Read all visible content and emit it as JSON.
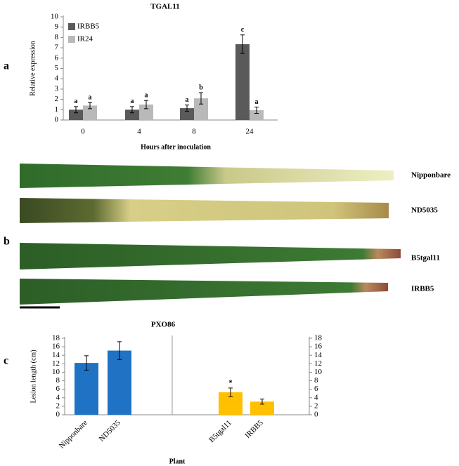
{
  "panel_labels": [
    "a",
    "b",
    "c"
  ],
  "leaf_labels": [
    "Nipponbare",
    "ND5035",
    "B5tgal11",
    "IRBB5"
  ],
  "chart_data": [
    {
      "type": "bar",
      "title": "TGAL11",
      "x_label": "Hours after inoculation",
      "y_label": "Relative expression",
      "categories": [
        "0",
        "4",
        "8",
        "24"
      ],
      "series": [
        {
          "name": "IRBB5",
          "color": "#5a5a5a",
          "values": [
            1.0,
            1.0,
            1.15,
            7.35
          ],
          "errors": [
            0.3,
            0.3,
            0.3,
            0.9
          ],
          "letters": [
            "a",
            "a",
            "a",
            "c"
          ]
        },
        {
          "name": "IR24",
          "color": "#b9b9b9",
          "values": [
            1.4,
            1.5,
            2.1,
            0.95
          ],
          "errors": [
            0.3,
            0.4,
            0.55,
            0.3
          ],
          "letters": [
            "a",
            "a",
            "b",
            "a"
          ]
        }
      ],
      "ylim": [
        0,
        10
      ],
      "yticks": [
        0,
        1,
        2,
        3,
        4,
        5,
        6,
        7,
        8,
        9,
        10
      ],
      "legend": "upper left"
    },
    {
      "type": "bar",
      "title": "PXO86",
      "x_label": "Plant",
      "y_label": "Lesion length (cm)",
      "categories": [
        "Nipponbare",
        "ND5035",
        "B5tgal11",
        "IRBB5"
      ],
      "series": [
        {
          "color": "#1f72c4",
          "values": [
            12.2,
            15.1,
            null,
            null
          ],
          "errors": [
            1.7,
            2.1,
            null,
            null
          ]
        },
        {
          "color": "#ffc000",
          "values": [
            null,
            null,
            5.3,
            3.1
          ],
          "errors": [
            null,
            null,
            1.0,
            0.6
          ],
          "annotations": [
            null,
            null,
            "*",
            null
          ],
          "axis": "y2"
        }
      ],
      "ylim": [
        0,
        18
      ],
      "yticks": [
        0,
        2,
        4,
        6,
        8,
        10,
        12,
        14,
        16,
        18
      ],
      "y2lim": [
        0,
        18
      ],
      "y2ticks": [
        0,
        2,
        4,
        6,
        8,
        10,
        12,
        14,
        16,
        18
      ]
    }
  ]
}
